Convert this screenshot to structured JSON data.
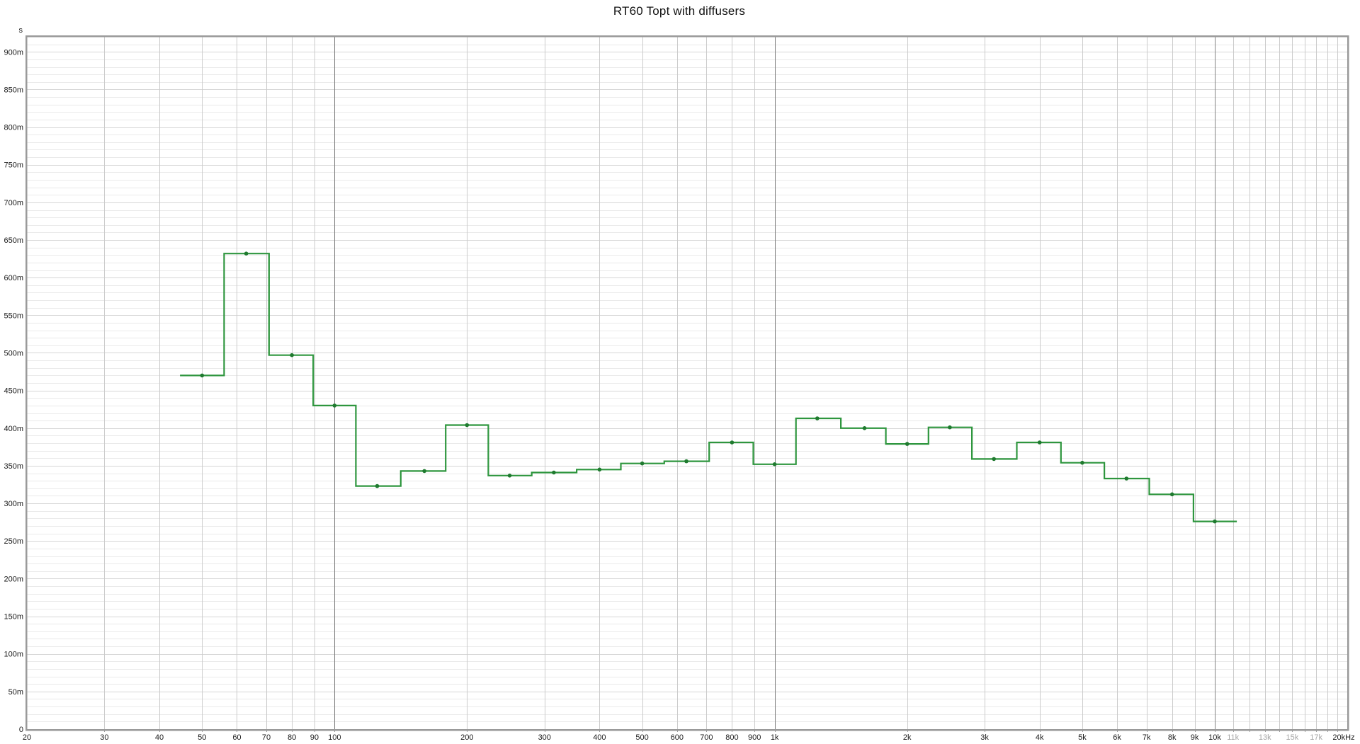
{
  "chart_data": {
    "type": "line",
    "subtype": "step-band",
    "title": "RT60 Topt with diffusers",
    "y_unit_label": "s",
    "legend": "none",
    "grid": true,
    "x_axis": {
      "scale": "log",
      "min_hz": 20,
      "max_hz": 20000,
      "ticks": [
        {
          "f": 20,
          "label": "20"
        },
        {
          "f": 30,
          "label": "30"
        },
        {
          "f": 40,
          "label": "40"
        },
        {
          "f": 50,
          "label": "50"
        },
        {
          "f": 60,
          "label": "60"
        },
        {
          "f": 70,
          "label": "70"
        },
        {
          "f": 80,
          "label": "80"
        },
        {
          "f": 90,
          "label": "90"
        },
        {
          "f": 100,
          "label": "100"
        },
        {
          "f": 200,
          "label": "200"
        },
        {
          "f": 300,
          "label": "300"
        },
        {
          "f": 400,
          "label": "400"
        },
        {
          "f": 500,
          "label": "500"
        },
        {
          "f": 600,
          "label": "600"
        },
        {
          "f": 700,
          "label": "700"
        },
        {
          "f": 800,
          "label": "800"
        },
        {
          "f": 900,
          "label": "900"
        },
        {
          "f": 1000,
          "label": "1k"
        },
        {
          "f": 2000,
          "label": "2k"
        },
        {
          "f": 3000,
          "label": "3k"
        },
        {
          "f": 4000,
          "label": "4k"
        },
        {
          "f": 5000,
          "label": "5k"
        },
        {
          "f": 6000,
          "label": "6k"
        },
        {
          "f": 7000,
          "label": "7k"
        },
        {
          "f": 8000,
          "label": "8k"
        },
        {
          "f": 9000,
          "label": "9k"
        },
        {
          "f": 10000,
          "label": "10k"
        },
        {
          "f": 11000,
          "label": "11k",
          "muted": true
        },
        {
          "f": 13000,
          "label": "13k",
          "muted": true
        },
        {
          "f": 15000,
          "label": "15k",
          "muted": true
        },
        {
          "f": 17000,
          "label": "17k",
          "muted": true
        },
        {
          "f": 20000,
          "label": "20kHz"
        }
      ]
    },
    "y_axis": {
      "min_ms": 0,
      "max_ms": 920,
      "minor_step_ms": 10,
      "major_step_ms": 50,
      "ticks": [
        {
          "v": 900,
          "label": "900m"
        },
        {
          "v": 850,
          "label": "850m"
        },
        {
          "v": 800,
          "label": "800m"
        },
        {
          "v": 750,
          "label": "750m"
        },
        {
          "v": 700,
          "label": "700m"
        },
        {
          "v": 650,
          "label": "650m"
        },
        {
          "v": 600,
          "label": "600m"
        },
        {
          "v": 550,
          "label": "550m"
        },
        {
          "v": 500,
          "label": "500m"
        },
        {
          "v": 450,
          "label": "450m"
        },
        {
          "v": 400,
          "label": "400m"
        },
        {
          "v": 350,
          "label": "350m"
        },
        {
          "v": 300,
          "label": "300m"
        },
        {
          "v": 250,
          "label": "250m"
        },
        {
          "v": 200,
          "label": "200m"
        },
        {
          "v": 150,
          "label": "150m"
        },
        {
          "v": 100,
          "label": "100m"
        },
        {
          "v": 50,
          "label": "50m"
        },
        {
          "v": 0,
          "label": "0"
        }
      ]
    },
    "series": [
      {
        "name": "RT60 Topt",
        "line_color": "#2e963e",
        "marker_color": "#1f7a2f",
        "bands": [
          {
            "freq_hz": 50,
            "rt60_ms": 470
          },
          {
            "freq_hz": 63,
            "rt60_ms": 632
          },
          {
            "freq_hz": 80,
            "rt60_ms": 497
          },
          {
            "freq_hz": 100,
            "rt60_ms": 430
          },
          {
            "freq_hz": 125,
            "rt60_ms": 323
          },
          {
            "freq_hz": 160,
            "rt60_ms": 343
          },
          {
            "freq_hz": 200,
            "rt60_ms": 404
          },
          {
            "freq_hz": 250,
            "rt60_ms": 337
          },
          {
            "freq_hz": 315,
            "rt60_ms": 341
          },
          {
            "freq_hz": 400,
            "rt60_ms": 345
          },
          {
            "freq_hz": 500,
            "rt60_ms": 353
          },
          {
            "freq_hz": 630,
            "rt60_ms": 356
          },
          {
            "freq_hz": 800,
            "rt60_ms": 381
          },
          {
            "freq_hz": 1000,
            "rt60_ms": 352
          },
          {
            "freq_hz": 1250,
            "rt60_ms": 413
          },
          {
            "freq_hz": 1600,
            "rt60_ms": 400
          },
          {
            "freq_hz": 2000,
            "rt60_ms": 379
          },
          {
            "freq_hz": 2500,
            "rt60_ms": 401
          },
          {
            "freq_hz": 3150,
            "rt60_ms": 359
          },
          {
            "freq_hz": 4000,
            "rt60_ms": 381
          },
          {
            "freq_hz": 5000,
            "rt60_ms": 354
          },
          {
            "freq_hz": 6300,
            "rt60_ms": 333
          },
          {
            "freq_hz": 8000,
            "rt60_ms": 312
          },
          {
            "freq_hz": 10000,
            "rt60_ms": 276
          }
        ]
      }
    ],
    "colors": {
      "background": "#ffffff",
      "plot_border": "#9a9a9a",
      "grid_minor_h": "#eaeaea",
      "grid_major_h": "#d6d6d6",
      "grid_v": "#cbcbcb",
      "grid_v_decade": "#828282",
      "label_color": "#1a1a1a",
      "label_muted_color": "#a6a6a6"
    }
  }
}
